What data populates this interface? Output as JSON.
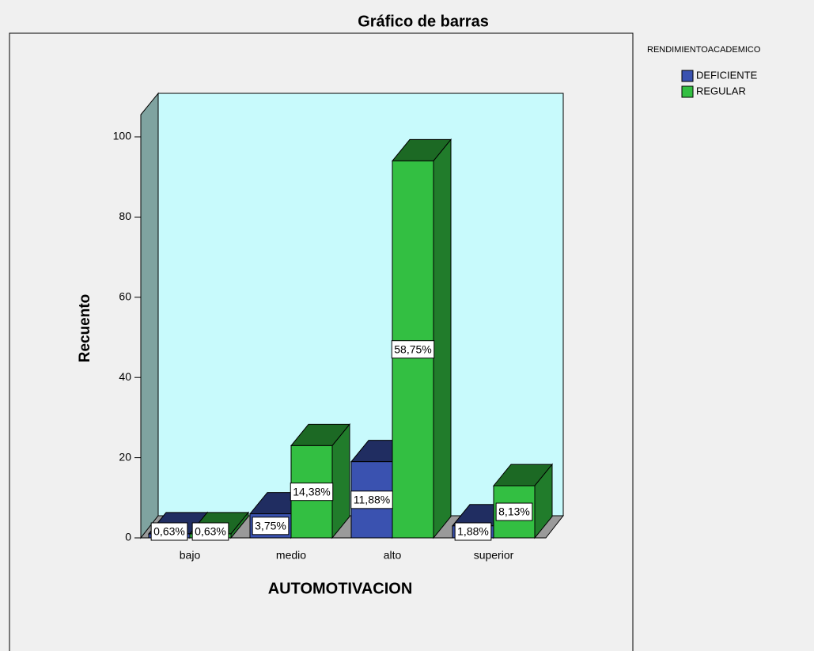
{
  "chart_data": {
    "type": "bar3d",
    "title": "Gráfico de barras",
    "x_label": "AUTOMOTIVACION",
    "y_label": "Recuento",
    "legend_title": "RENDIMIENTOACADEMICO",
    "categories": [
      "bajo",
      "medio",
      "alto",
      "superior"
    ],
    "series": [
      {
        "name": "DEFICIENTE",
        "color": "#3a52b0",
        "values": [
          1,
          6,
          19,
          3
        ],
        "percent_labels": [
          "0,63%",
          "3,75%",
          "11,88%",
          "1,88%"
        ]
      },
      {
        "name": "REGULAR",
        "color": "#33bf42",
        "values": [
          1,
          23,
          94,
          13
        ],
        "percent_labels": [
          "0,63%",
          "14,38%",
          "58,75%",
          "8,13%"
        ]
      }
    ],
    "ylim": [
      0,
      105
    ],
    "yticks": [
      0,
      20,
      40,
      60,
      80,
      100
    ]
  }
}
